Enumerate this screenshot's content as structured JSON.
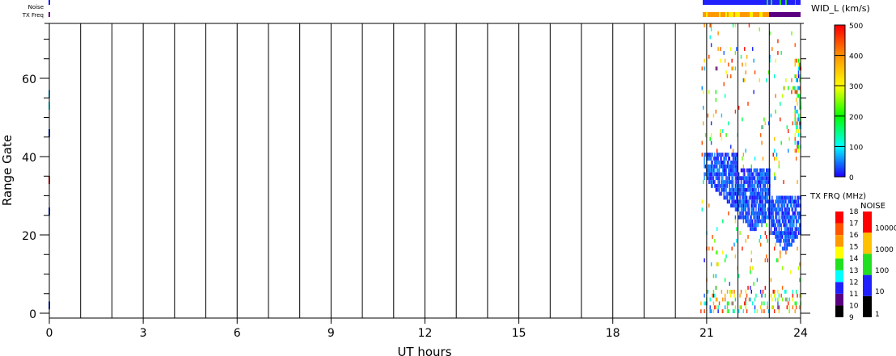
{
  "chart_data": {
    "type": "heatmap",
    "xlabel": "UT hours",
    "ylabel": "Range Gate",
    "xlim": [
      0,
      24
    ],
    "ylim": [
      0,
      74
    ],
    "x_ticks": [
      "0",
      "3",
      "6",
      "9",
      "12",
      "15",
      "18",
      "21",
      "24"
    ],
    "y_ticks": [
      "0",
      "20",
      "40",
      "60"
    ],
    "grid": "vertical lines every hour",
    "data_coverage_hours": [
      20.8,
      24
    ],
    "strips": {
      "noise_label": "Noise",
      "txfreq_label": "TX Freq"
    },
    "colorbars": {
      "width": {
        "title": "WID_L (km/s)",
        "ticks": [
          "0",
          "100",
          "200",
          "300",
          "400",
          "500"
        ],
        "range": [
          0,
          500
        ]
      },
      "txfreq": {
        "title": "TX FRQ (MHz)",
        "ticks": [
          "9",
          "10",
          "11",
          "12",
          "13",
          "14",
          "15",
          "16",
          "17",
          "18"
        ],
        "colors": [
          "#000000",
          "#5a0080",
          "#2020ff",
          "#00ffff",
          "#20e020",
          "#ffff00",
          "#ff9900",
          "#ff5500",
          "#ff0000"
        ]
      },
      "noise": {
        "title": "NOISE",
        "ticks": [
          "1",
          "10",
          "100",
          "1000",
          "10000"
        ],
        "colors": [
          "#000000",
          "#2020ff",
          "#20e020",
          "#ffc000",
          "#ff0000"
        ]
      }
    }
  }
}
